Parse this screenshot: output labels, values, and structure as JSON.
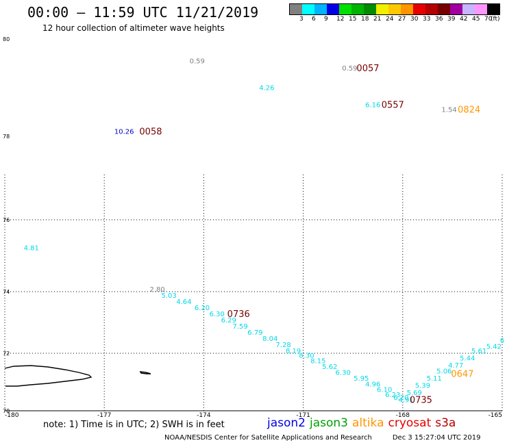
{
  "header": {
    "title": "00:00 – 11:59 UTC 11/21/2019",
    "subtitle": "12 hour collection of altimeter wave heights"
  },
  "legend": {
    "unit": "(ft)",
    "swatches": [
      {
        "color": "#808080",
        "label": ""
      },
      {
        "color": "#00ffff",
        "label": "3"
      },
      {
        "color": "#00b4ff",
        "label": "6"
      },
      {
        "color": "#0000e6",
        "label": "9"
      },
      {
        "color": "#00e000",
        "label": "12"
      },
      {
        "color": "#00b400",
        "label": "15"
      },
      {
        "color": "#008c00",
        "label": "18"
      },
      {
        "color": "#f0f000",
        "label": "21"
      },
      {
        "color": "#ffc800",
        "label": "24"
      },
      {
        "color": "#ff9600",
        "label": "27"
      },
      {
        "color": "#e60000",
        "label": "30"
      },
      {
        "color": "#b40000",
        "label": "33"
      },
      {
        "color": "#780000",
        "label": "36"
      },
      {
        "color": "#a000a0",
        "label": "39"
      },
      {
        "color": "#c8b4ff",
        "label": "42"
      },
      {
        "color": "#ff96ff",
        "label": "45"
      },
      {
        "color": "#000000",
        "label": "70"
      }
    ]
  },
  "axes": {
    "lat_ticks": [
      "80",
      "78",
      "76",
      "74",
      "72",
      "70"
    ],
    "lon_ticks": [
      "-180",
      "-177",
      "-174",
      "-171",
      "-168",
      "-165"
    ]
  },
  "observations": [
    {
      "text": "0.59",
      "color": "#808080",
      "lon": -174.2,
      "lat": 79.5
    },
    {
      "text": "0.59",
      "color": "#808080",
      "lon": -169.6,
      "lat": 79.35
    },
    {
      "text": "4.26",
      "color": "#00d8e8",
      "lon": -172.1,
      "lat": 78.95
    },
    {
      "text": "6.16",
      "color": "#00d8e8",
      "lon": -168.9,
      "lat": 78.6
    },
    {
      "text": "1.54",
      "color": "#808080",
      "lon": -166.6,
      "lat": 78.5
    },
    {
      "text": "10.26",
      "color": "#0000c8",
      "lon": -176.4,
      "lat": 78.05
    },
    {
      "text": "4.81",
      "color": "#00d8e8",
      "lon": -179.2,
      "lat": 75.15
    },
    {
      "text": "2.80",
      "color": "#808080",
      "lon": -175.4,
      "lat": 74.0
    },
    {
      "text": "5.03",
      "color": "#00d8e8",
      "lon": -175.05,
      "lat": 73.8
    },
    {
      "text": "4.64",
      "color": "#00d8e8",
      "lon": -174.6,
      "lat": 73.6
    },
    {
      "text": "6.20",
      "color": "#00d8e8",
      "lon": -174.05,
      "lat": 73.4
    },
    {
      "text": "6.30",
      "color": "#00d8e8",
      "lon": -173.6,
      "lat": 73.2
    },
    {
      "text": "6.29",
      "color": "#00d8e8",
      "lon": -173.25,
      "lat": 73.0
    },
    {
      "text": "7.59",
      "color": "#00d8e8",
      "lon": -172.9,
      "lat": 72.8
    },
    {
      "text": "6.79",
      "color": "#00d8e8",
      "lon": -172.45,
      "lat": 72.6
    },
    {
      "text": "8.04",
      "color": "#00d8e8",
      "lon": -172.0,
      "lat": 72.4
    },
    {
      "text": "7.28",
      "color": "#00d8e8",
      "lon": -171.6,
      "lat": 72.2
    },
    {
      "text": "8.19",
      "color": "#00d8e8",
      "lon": -171.3,
      "lat": 72.0
    },
    {
      "text": "8.30",
      "color": "#00d8e8",
      "lon": -170.9,
      "lat": 71.85
    },
    {
      "text": "8.15",
      "color": "#00d8e8",
      "lon": -170.55,
      "lat": 71.65
    },
    {
      "text": "5.62",
      "color": "#00d8e8",
      "lon": -170.2,
      "lat": 71.45
    },
    {
      "text": "6.30",
      "color": "#00d8e8",
      "lon": -169.8,
      "lat": 71.25
    },
    {
      "text": "5.95",
      "color": "#00d8e8",
      "lon": -169.25,
      "lat": 71.05
    },
    {
      "text": "4.96",
      "color": "#00d8e8",
      "lon": -168.9,
      "lat": 70.85
    },
    {
      "text": "6.10",
      "color": "#00d8e8",
      "lon": -168.55,
      "lat": 70.65
    },
    {
      "text": "6.23",
      "color": "#00d8e8",
      "lon": -168.3,
      "lat": 70.48
    },
    {
      "text": "6.20",
      "color": "#00d8e8",
      "lon": -168.05,
      "lat": 70.38
    },
    {
      "text": "4.91",
      "color": "#00d8e8",
      "lon": -167.9,
      "lat": 70.3
    },
    {
      "text": "5.69",
      "color": "#00d8e8",
      "lon": -167.65,
      "lat": 70.55
    },
    {
      "text": "5.39",
      "color": "#00d8e8",
      "lon": -167.4,
      "lat": 70.8
    },
    {
      "text": "5.11",
      "color": "#00d8e8",
      "lon": -167.05,
      "lat": 71.05
    },
    {
      "text": "5.06",
      "color": "#00d8e8",
      "lon": -166.75,
      "lat": 71.3
    },
    {
      "text": "4.77",
      "color": "#00d8e8",
      "lon": -166.4,
      "lat": 71.5
    },
    {
      "text": "5.44",
      "color": "#00d8e8",
      "lon": -166.05,
      "lat": 71.75
    },
    {
      "text": "5.61",
      "color": "#00d8e8",
      "lon": -165.7,
      "lat": 72.0
    },
    {
      "text": "5.42",
      "color": "#00d8e8",
      "lon": -165.25,
      "lat": 72.15
    },
    {
      "text": "6",
      "color": "#00d8e8",
      "lon": -165.0,
      "lat": 72.35
    }
  ],
  "pass_times": [
    {
      "text": "0057",
      "color": "#780000",
      "lon": -169.05,
      "lat": 79.35
    },
    {
      "text": "0557",
      "color": "#780000",
      "lon": -168.3,
      "lat": 78.6
    },
    {
      "text": "0824",
      "color": "#ff9600",
      "lon": -166.0,
      "lat": 78.5
    },
    {
      "text": "0058",
      "color": "#780000",
      "lon": -175.6,
      "lat": 78.05
    },
    {
      "text": "0736",
      "color": "#780000",
      "lon": -172.95,
      "lat": 73.2
    },
    {
      "text": "0647",
      "color": "#ff9600",
      "lon": -166.2,
      "lat": 71.2
    },
    {
      "text": "0735",
      "color": "#780000",
      "lon": -167.45,
      "lat": 70.3
    }
  ],
  "note": "note: 1) Time is in UTC; 2) SWH is in feet",
  "satellites": [
    {
      "name": "jason2",
      "color": "#0000e6"
    },
    {
      "name": "jason3",
      "color": "#00a000"
    },
    {
      "name": "altika",
      "color": "#ff9600"
    },
    {
      "name": "cryosat",
      "color": "#e60000"
    },
    {
      "name": "s3a",
      "color": "#b40000"
    }
  ],
  "footer": {
    "credit": "NOAA/NESDIS Center for Satellite Applications and Research",
    "timestamp": "Dec  3 15:27:04 UTC 2019"
  }
}
